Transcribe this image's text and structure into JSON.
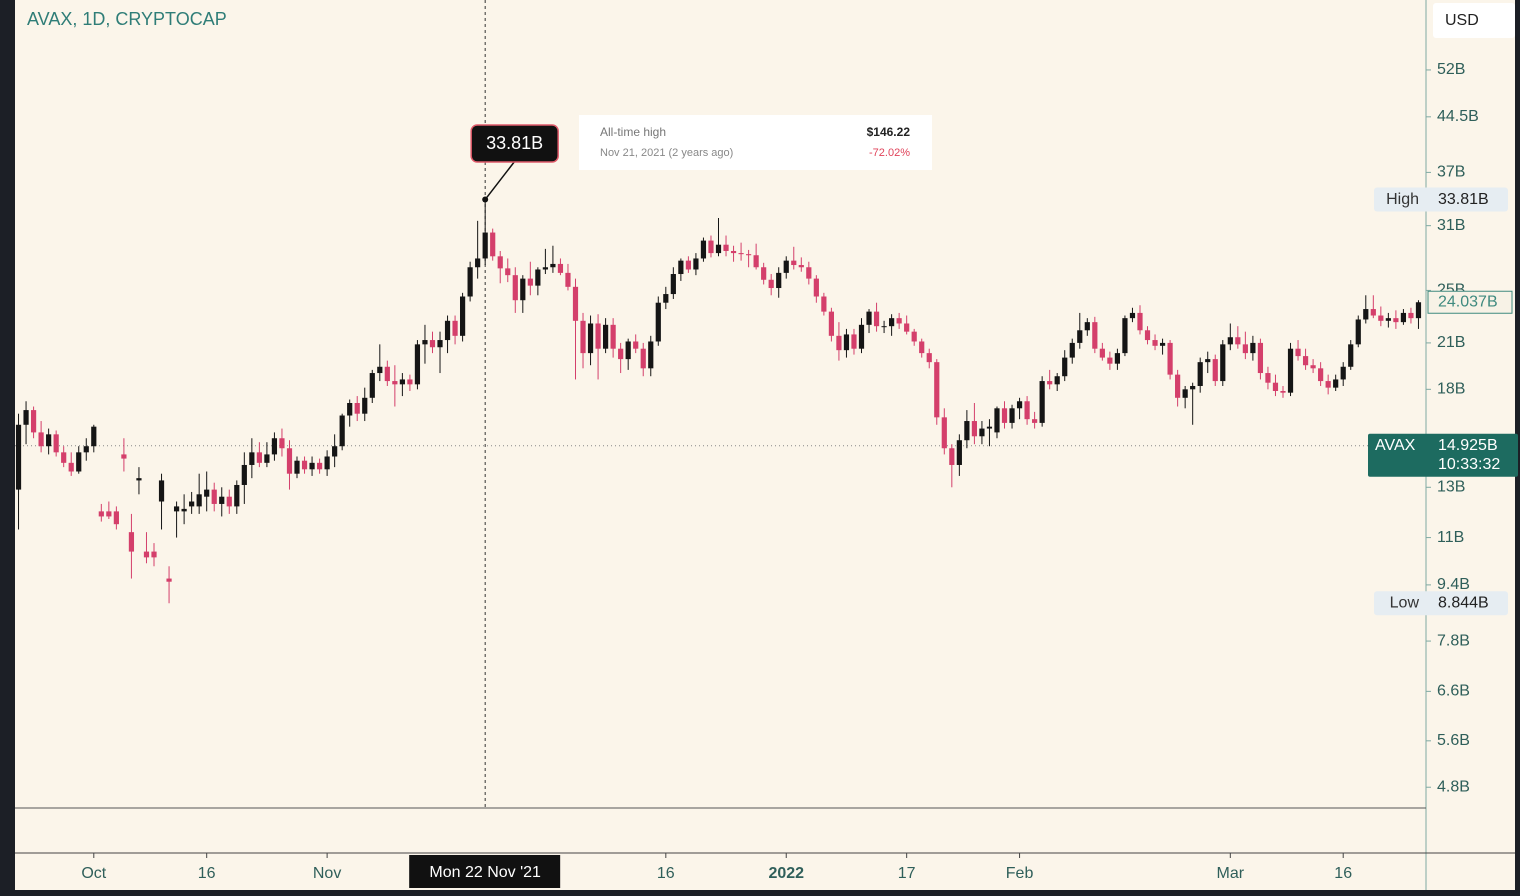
{
  "chart_data": {
    "type": "candlestick",
    "title": "AVAX, 1D, CRYPTOCAP",
    "currency": "USD",
    "log_scale": true,
    "up_color": "#151515",
    "down_color": "#d43f6b",
    "x": [
      "2021-09-21",
      "2021-09-22",
      "2021-09-23",
      "2021-09-24",
      "2021-09-25",
      "2021-09-26",
      "2021-09-27",
      "2021-09-28",
      "2021-09-29",
      "2021-09-30",
      "2021-10-01",
      "2021-10-02",
      "2021-10-03",
      "2021-10-04",
      "2021-10-05",
      "2021-10-06",
      "2021-10-07",
      "2021-10-08",
      "2021-10-09",
      "2021-10-10",
      "2021-10-11",
      "2021-10-12",
      "2021-10-13",
      "2021-10-14",
      "2021-10-15",
      "2021-10-16",
      "2021-10-17",
      "2021-10-18",
      "2021-10-19",
      "2021-10-20",
      "2021-10-21",
      "2021-10-22",
      "2021-10-23",
      "2021-10-24",
      "2021-10-25",
      "2021-10-26",
      "2021-10-27",
      "2021-10-28",
      "2021-10-29",
      "2021-10-30",
      "2021-10-31",
      "2021-11-01",
      "2021-11-02",
      "2021-11-03",
      "2021-11-04",
      "2021-11-05",
      "2021-11-06",
      "2021-11-07",
      "2021-11-08",
      "2021-11-09",
      "2021-11-10",
      "2021-11-11",
      "2021-11-12",
      "2021-11-13",
      "2021-11-14",
      "2021-11-15",
      "2021-11-16",
      "2021-11-17",
      "2021-11-18",
      "2021-11-19",
      "2021-11-20",
      "2021-11-21",
      "2021-11-22",
      "2021-11-23",
      "2021-11-24",
      "2021-11-25",
      "2021-11-26",
      "2021-11-27",
      "2021-11-28",
      "2021-11-29",
      "2021-11-30",
      "2021-12-01",
      "2021-12-02",
      "2021-12-03",
      "2021-12-04",
      "2021-12-05",
      "2021-12-06",
      "2021-12-07",
      "2021-12-08",
      "2021-12-09",
      "2021-12-10",
      "2021-12-11",
      "2021-12-12",
      "2021-12-13",
      "2021-12-14",
      "2021-12-15",
      "2021-12-16",
      "2021-12-17",
      "2021-12-18",
      "2021-12-19",
      "2021-12-20",
      "2021-12-21",
      "2021-12-22",
      "2021-12-23",
      "2021-12-24",
      "2021-12-25",
      "2021-12-26",
      "2021-12-27",
      "2021-12-28",
      "2021-12-29",
      "2021-12-30",
      "2021-12-31",
      "2022-01-01",
      "2022-01-02",
      "2022-01-03",
      "2022-01-04",
      "2022-01-05",
      "2022-01-06",
      "2022-01-07",
      "2022-01-08",
      "2022-01-09",
      "2022-01-10",
      "2022-01-11",
      "2022-01-12",
      "2022-01-13",
      "2022-01-14",
      "2022-01-15",
      "2022-01-16",
      "2022-01-17",
      "2022-01-18",
      "2022-01-19",
      "2022-01-20",
      "2022-01-21",
      "2022-01-22",
      "2022-01-23",
      "2022-01-24",
      "2022-01-25",
      "2022-01-26",
      "2022-01-27",
      "2022-01-28",
      "2022-01-29",
      "2022-01-30",
      "2022-01-31",
      "2022-02-01",
      "2022-02-02",
      "2022-02-03",
      "2022-02-04",
      "2022-02-05",
      "2022-02-06",
      "2022-02-07",
      "2022-02-08",
      "2022-02-09",
      "2022-02-10",
      "2022-02-11",
      "2022-02-12",
      "2022-02-13",
      "2022-02-14",
      "2022-02-15",
      "2022-02-16",
      "2022-02-17",
      "2022-02-18",
      "2022-02-19",
      "2022-02-20",
      "2022-02-21",
      "2022-02-22",
      "2022-02-23",
      "2022-02-24",
      "2022-02-25",
      "2022-02-26",
      "2022-02-27",
      "2022-02-28",
      "2022-03-01",
      "2022-03-02",
      "2022-03-03",
      "2022-03-04",
      "2022-03-05",
      "2022-03-06",
      "2022-03-07",
      "2022-03-08",
      "2022-03-09",
      "2022-03-10",
      "2022-03-11",
      "2022-03-12",
      "2022-03-13",
      "2022-03-14",
      "2022-03-15",
      "2022-03-16",
      "2022-03-17",
      "2022-03-18",
      "2022-03-19",
      "2022-03-20",
      "2022-03-21",
      "2022-03-22",
      "2022-03-23",
      "2022-03-24",
      "2022-03-25",
      "2022-03-26"
    ],
    "open": [
      12.9,
      16.0,
      16.8,
      15.6,
      14.9,
      15.5,
      14.6,
      14.1,
      13.7,
      14.6,
      14.9,
      12.0,
      12.0,
      12.0,
      14.5,
      11.2,
      13.3,
      10.5,
      10.5,
      12.4,
      9.6,
      12.0,
      12.0,
      12.2,
      12.2,
      12.6,
      12.9,
      12.3,
      12.6,
      12.2,
      13.1,
      14.0,
      14.6,
      14.1,
      14.5,
      15.3,
      14.8,
      13.6,
      14.2,
      13.8,
      14.1,
      13.8,
      14.4,
      14.9,
      16.5,
      17.2,
      16.6,
      17.5,
      19.0,
      19.4,
      18.5,
      18.3,
      18.6,
      18.3,
      20.9,
      21.2,
      20.7,
      21.2,
      22.6,
      21.5,
      24.5,
      27.0,
      27.8,
      30.3,
      28.0,
      26.9,
      26.3,
      24.2,
      26.0,
      25.4,
      26.8,
      27.0,
      27.3,
      26.5,
      25.3,
      22.6,
      20.3,
      22.4,
      20.6,
      22.3,
      20.6,
      19.9,
      21.1,
      20.6,
      19.3,
      21.1,
      24.0,
      24.7,
      26.4,
      27.6,
      26.8,
      27.8,
      29.5,
      28.3,
      29.1,
      28.5,
      28.3,
      28.2,
      28.1,
      27.0,
      25.9,
      25.2,
      26.5,
      27.6,
      27.2,
      27.0,
      26.0,
      24.5,
      23.3,
      21.5,
      20.5,
      21.6,
      20.6,
      22.3,
      23.3,
      22.2,
      22.2,
      22.8,
      22.4,
      21.8,
      21.1,
      20.3,
      19.7,
      16.4,
      14.8,
      14.0,
      15.2,
      16.2,
      15.4,
      15.8,
      15.6,
      16.9,
      16.1,
      16.9,
      17.3,
      16.3,
      16.1,
      18.5,
      18.3,
      18.8,
      20.0,
      21.0,
      21.9,
      22.5,
      20.6,
      20.0,
      19.6,
      20.3,
      22.8,
      23.2,
      21.9,
      21.2,
      20.8,
      21.0,
      18.9,
      17.5,
      18.0,
      18.2,
      19.7,
      19.9,
      18.5,
      20.9,
      21.4,
      20.9,
      20.3,
      21.0,
      19.0,
      18.4,
      17.9,
      17.8,
      20.6,
      20.1,
      19.5,
      19.3,
      18.5,
      18.1,
      18.6,
      19.4,
      20.9,
      22.7,
      23.5,
      23.0,
      22.6,
      22.8,
      22.5,
      23.2,
      22.8
    ],
    "high": [
      16.6,
      17.3,
      17.0,
      16.2,
      15.8,
      15.7,
      14.9,
      14.6,
      14.9,
      15.3,
      16.0,
      12.3,
      12.4,
      12.2,
      15.3,
      11.9,
      13.9,
      11.2,
      10.8,
      13.6,
      10.0,
      12.4,
      12.7,
      12.8,
      13.6,
      13.7,
      13.2,
      13.0,
      12.9,
      13.3,
      14.6,
      15.3,
      15.1,
      15.1,
      15.6,
      15.8,
      15.2,
      14.4,
      14.4,
      14.4,
      14.3,
      14.7,
      15.5,
      16.6,
      17.4,
      17.6,
      18.1,
      19.2,
      20.9,
      19.8,
      19.5,
      19.0,
      18.9,
      21.2,
      22.3,
      21.8,
      21.8,
      23.0,
      23.0,
      24.8,
      27.5,
      31.5,
      33.81,
      30.7,
      28.5,
      27.8,
      27.0,
      26.3,
      27.5,
      27.0,
      28.7,
      29.0,
      27.8,
      27.3,
      26.0,
      23.2,
      23.0,
      23.1,
      22.8,
      22.8,
      21.0,
      21.3,
      21.6,
      21.0,
      21.5,
      24.5,
      25.3,
      27.0,
      27.8,
      28.0,
      28.3,
      29.8,
      30.0,
      31.8,
      30.0,
      29.0,
      29.3,
      28.6,
      29.2,
      27.4,
      26.4,
      27.0,
      28.0,
      28.9,
      27.9,
      27.5,
      26.3,
      24.8,
      23.6,
      22.5,
      22.0,
      22.0,
      22.8,
      23.5,
      24.0,
      22.6,
      23.1,
      23.2,
      23.0,
      22.0,
      21.3,
      20.6,
      19.9,
      16.9,
      15.0,
      15.5,
      16.8,
      17.2,
      16.2,
      16.3,
      17.0,
      17.3,
      17.1,
      17.5,
      17.6,
      16.7,
      18.8,
      19.2,
      19.0,
      20.5,
      21.3,
      23.2,
      22.8,
      22.9,
      21.0,
      20.4,
      20.6,
      23.0,
      23.6,
      23.8,
      22.2,
      21.6,
      21.3,
      21.2,
      19.2,
      18.2,
      18.4,
      20.0,
      20.4,
      20.2,
      21.2,
      22.4,
      22.2,
      21.8,
      21.5,
      21.3,
      19.4,
      18.9,
      18.2,
      21.0,
      21.2,
      20.6,
      19.9,
      19.7,
      18.9,
      18.9,
      19.7,
      21.2,
      23.0,
      24.6,
      24.6,
      23.7,
      23.2,
      23.4,
      23.5,
      23.6,
      24.2
    ],
    "low": [
      11.3,
      15.0,
      15.3,
      14.6,
      14.5,
      14.4,
      13.9,
      13.5,
      13.6,
      14.2,
      14.6,
      11.6,
      11.7,
      11.3,
      13.7,
      9.6,
      12.7,
      10.1,
      10.0,
      11.3,
      8.844,
      11.0,
      11.5,
      11.9,
      11.9,
      12.0,
      12.0,
      11.8,
      11.9,
      11.9,
      12.3,
      13.4,
      13.9,
      13.9,
      14.2,
      14.4,
      12.9,
      13.4,
      13.6,
      13.5,
      13.6,
      13.5,
      13.9,
      14.7,
      15.9,
      16.2,
      16.2,
      17.2,
      18.5,
      18.2,
      17.0,
      17.6,
      17.9,
      18.0,
      19.6,
      20.3,
      19.0,
      20.3,
      20.9,
      21.1,
      24.1,
      26.0,
      27.2,
      27.6,
      25.6,
      25.7,
      23.2,
      23.2,
      24.6,
      24.6,
      26.4,
      26.5,
      26.3,
      25.0,
      18.6,
      19.3,
      19.5,
      18.6,
      20.3,
      20.0,
      19.0,
      19.2,
      20.3,
      18.8,
      18.8,
      20.8,
      23.5,
      24.3,
      25.8,
      26.5,
      26.3,
      27.5,
      27.9,
      28.0,
      28.0,
      27.5,
      27.6,
      27.0,
      26.8,
      25.5,
      24.6,
      24.4,
      26.0,
      26.8,
      26.6,
      25.5,
      24.0,
      23.0,
      21.1,
      19.8,
      20.0,
      20.2,
      20.3,
      21.7,
      21.8,
      21.7,
      21.5,
      22.0,
      21.6,
      20.8,
      20.0,
      19.3,
      16.0,
      14.5,
      13.0,
      13.5,
      14.8,
      15.0,
      15.0,
      14.9,
      15.3,
      15.8,
      15.8,
      16.3,
      16.0,
      15.8,
      15.9,
      18.0,
      17.9,
      18.5,
      19.6,
      20.6,
      21.5,
      20.3,
      19.8,
      19.2,
      19.2,
      20.1,
      22.5,
      21.6,
      20.9,
      20.5,
      20.2,
      18.6,
      17.0,
      16.9,
      16.0,
      17.8,
      19.0,
      18.2,
      18.2,
      20.5,
      20.6,
      19.9,
      19.8,
      18.6,
      18.0,
      17.6,
      17.5,
      17.6,
      19.8,
      19.2,
      19.0,
      18.2,
      17.7,
      17.9,
      18.2,
      19.2,
      20.7,
      22.4,
      22.8,
      22.2,
      22.1,
      22.0,
      22.3,
      22.4,
      22.0
    ],
    "close": [
      16.0,
      16.8,
      15.6,
      14.9,
      15.5,
      14.6,
      14.1,
      13.7,
      14.6,
      14.9,
      15.9,
      11.8,
      11.8,
      11.5,
      14.3,
      10.5,
      13.4,
      10.3,
      10.3,
      13.3,
      9.5,
      12.2,
      12.1,
      12.4,
      12.7,
      12.9,
      12.3,
      12.6,
      12.2,
      13.1,
      14.0,
      14.6,
      14.1,
      14.5,
      15.3,
      14.8,
      13.6,
      14.2,
      13.8,
      14.1,
      13.8,
      14.4,
      14.9,
      16.5,
      17.2,
      16.6,
      17.5,
      19.0,
      19.4,
      18.5,
      18.3,
      18.6,
      18.3,
      20.9,
      21.2,
      20.7,
      21.2,
      22.6,
      21.5,
      24.5,
      27.0,
      27.8,
      30.3,
      28.0,
      26.9,
      26.3,
      24.2,
      26.0,
      25.4,
      26.8,
      27.0,
      27.3,
      26.5,
      25.3,
      22.6,
      20.3,
      22.4,
      20.6,
      22.3,
      20.6,
      19.9,
      21.1,
      20.6,
      19.3,
      21.1,
      24.0,
      24.7,
      26.4,
      27.6,
      26.8,
      27.8,
      29.5,
      28.3,
      29.1,
      28.5,
      28.3,
      28.2,
      28.1,
      27.0,
      25.9,
      25.2,
      26.5,
      27.6,
      27.2,
      27.0,
      26.0,
      24.5,
      23.3,
      21.5,
      20.5,
      21.6,
      20.6,
      22.3,
      23.3,
      22.2,
      22.2,
      22.8,
      22.4,
      21.8,
      21.1,
      20.3,
      19.7,
      16.4,
      14.8,
      14.0,
      15.2,
      16.2,
      15.4,
      15.8,
      15.9,
      16.9,
      16.1,
      16.9,
      17.3,
      16.3,
      16.1,
      18.5,
      18.3,
      18.8,
      20.0,
      21.0,
      21.9,
      22.5,
      20.6,
      20.0,
      19.6,
      20.3,
      22.8,
      23.2,
      21.9,
      21.2,
      20.8,
      21.0,
      18.9,
      17.5,
      18.0,
      18.2,
      19.7,
      19.9,
      18.5,
      20.9,
      21.4,
      20.9,
      20.3,
      21.0,
      19.0,
      18.4,
      17.9,
      17.8,
      20.6,
      20.1,
      19.5,
      19.3,
      18.5,
      18.1,
      18.6,
      19.4,
      20.9,
      22.7,
      23.5,
      23.0,
      22.6,
      22.8,
      22.5,
      23.2,
      22.8,
      24.037
    ],
    "xlim": [
      "2021-09-20",
      "2022-03-27"
    ],
    "xticks": [
      {
        "value": "2021-10-01",
        "label": "Oct"
      },
      {
        "value": "2021-10-16",
        "label": "16"
      },
      {
        "value": "2021-11-01",
        "label": "Nov"
      },
      {
        "value": "2021-12-16",
        "label": "16"
      },
      {
        "value": "2022-01-01",
        "label": "2022",
        "bold": true
      },
      {
        "value": "2022-01-17",
        "label": "17"
      },
      {
        "value": "2022-02-01",
        "label": "Feb"
      },
      {
        "value": "2022-03-01",
        "label": "Mar"
      },
      {
        "value": "2022-03-16",
        "label": "16"
      }
    ],
    "ylim": [
      4.48,
      65.6
    ],
    "yticks": [
      {
        "value": 52,
        "label": "52B"
      },
      {
        "value": 44.5,
        "label": "44.5B"
      },
      {
        "value": 37,
        "label": "37B"
      },
      {
        "value": 31,
        "label": "31B"
      },
      {
        "value": 25,
        "label": "25B"
      },
      {
        "value": 21,
        "label": "21B"
      },
      {
        "value": 18,
        "label": "18B"
      },
      {
        "value": 13,
        "label": "13B"
      },
      {
        "value": 11,
        "label": "11B"
      },
      {
        "value": 9.4,
        "label": "9.4B"
      },
      {
        "value": 7.8,
        "label": "7.8B"
      },
      {
        "value": 6.6,
        "label": "6.6B"
      },
      {
        "value": 5.6,
        "label": "5.6B"
      },
      {
        "value": 4.8,
        "label": "4.8B"
      }
    ],
    "high_marker": {
      "name": "High",
      "value": 33.81,
      "label": "33.81B"
    },
    "low_marker": {
      "name": "Low",
      "value": 8.844,
      "label": "8.844B"
    },
    "last_marker": {
      "value": 24.037,
      "label": "24.037B"
    },
    "price_line": {
      "name": "AVAX",
      "value": 14.925,
      "label": "14.925B",
      "countdown": "10:33:32"
    },
    "crosshair": {
      "x": "2021-11-22",
      "label": "Mon 22 Nov '21",
      "value": 33.81,
      "value_label": "33.81B"
    },
    "annotation": {
      "title": "All-time high",
      "date": "Nov 21, 2021 (2 years ago)",
      "price": "$146.22",
      "change": "-72.02%"
    }
  }
}
